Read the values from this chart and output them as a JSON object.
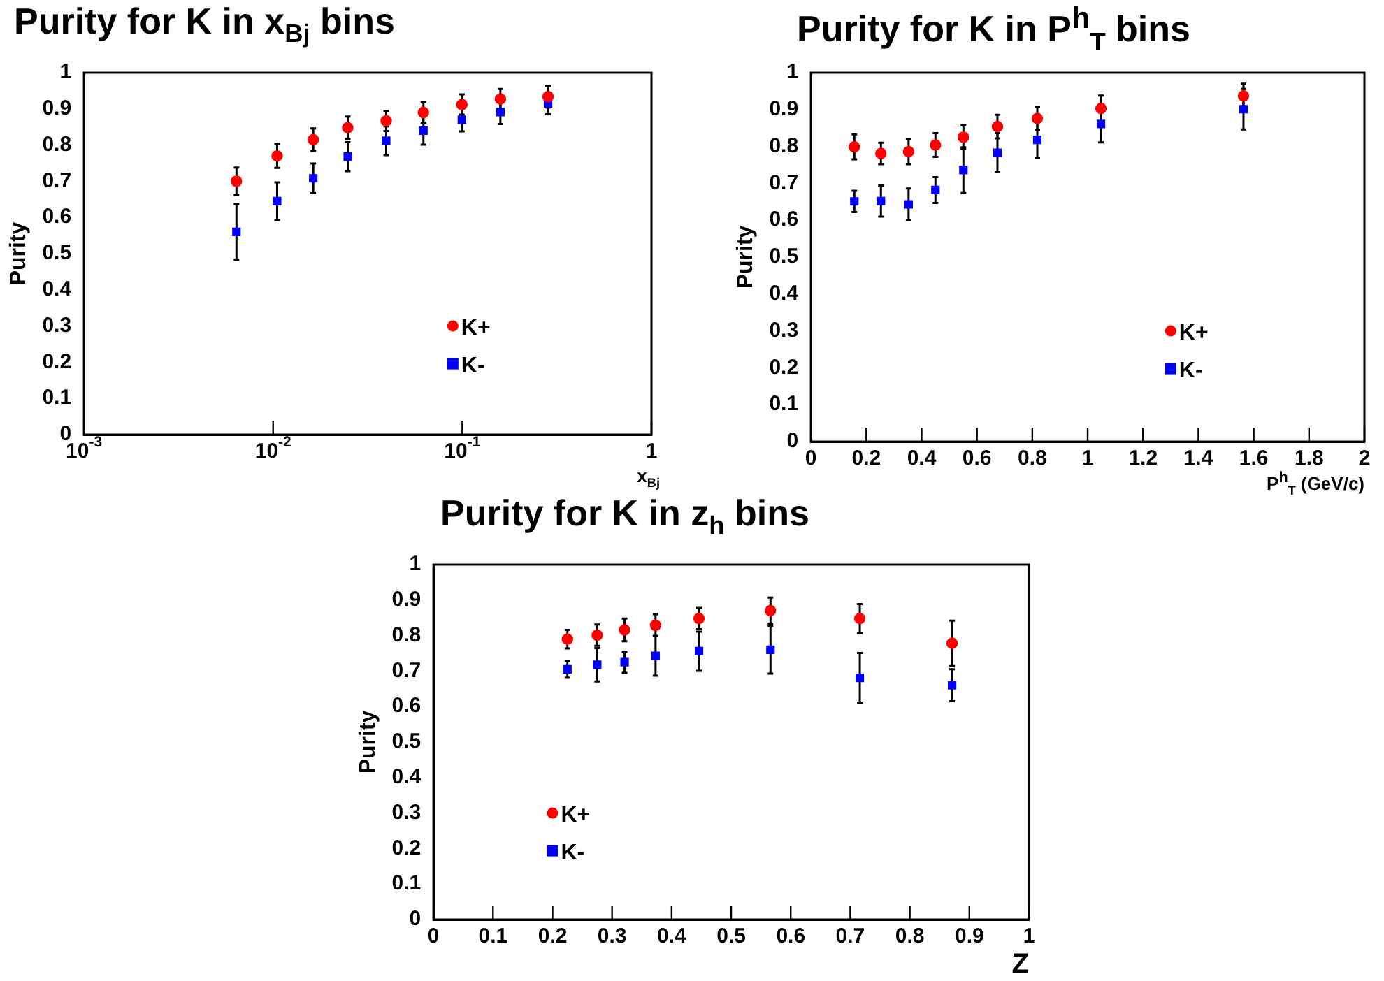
{
  "chart_data": [
    {
      "type": "scatter",
      "title": "Purity for K in x$_{Bj}$ bins",
      "xlabel": "x$_{Bj}$",
      "ylabel": "Purity",
      "log": "x",
      "xlim": [
        0.001,
        1
      ],
      "xticks": [
        {
          "value": 0.001,
          "label": "10$^{-3}$"
        },
        {
          "value": 0.01,
          "label": "10$^{-2}$"
        },
        {
          "value": 0.1,
          "label": "10$^{-1}$"
        },
        1
      ],
      "ylim": [
        0,
        1
      ],
      "yticks": [
        0,
        0.1,
        0.2,
        0.3,
        0.4,
        0.5,
        0.6,
        0.7,
        0.8,
        0.9,
        1
      ],
      "grid": false,
      "legend": "bottom right",
      "x": [
        0.0064,
        0.0105,
        0.0163,
        0.0248,
        0.0396,
        0.0623,
        0.0995,
        0.159,
        0.284
      ],
      "series": [
        {
          "name": "K+",
          "color": "#ff0000",
          "marker": "circle",
          "values": [
            0.7,
            0.77,
            0.815,
            0.848,
            0.867,
            0.89,
            0.912,
            0.927,
            0.934
          ],
          "errors": [
            0.038,
            0.033,
            0.031,
            0.031,
            0.028,
            0.028,
            0.028,
            0.028,
            0.03
          ]
        },
        {
          "name": "K-",
          "color": "#0000ff",
          "marker": "square",
          "values": [
            0.56,
            0.645,
            0.708,
            0.768,
            0.812,
            0.84,
            0.87,
            0.891,
            0.915
          ],
          "errors": [
            0.077,
            0.052,
            0.041,
            0.04,
            0.04,
            0.039,
            0.032,
            0.033,
            0.03
          ]
        }
      ]
    },
    {
      "type": "scatter",
      "title": "Purity for K in P$^{h}$$_{T}$ bins",
      "xlabel": "P$^{h}$$_{T}$ (GeV/c)",
      "ylabel": "Purity",
      "xlim": [
        0,
        2
      ],
      "xticks": [
        0,
        0.2,
        0.4,
        0.6,
        0.8,
        1,
        1.2,
        1.4,
        1.6,
        1.8,
        2
      ],
      "ylim": [
        0,
        1
      ],
      "yticks": [
        0,
        0.1,
        0.2,
        0.3,
        0.4,
        0.5,
        0.6,
        0.7,
        0.8,
        0.9,
        1
      ],
      "grid": false,
      "legend": "bottom right",
      "x": [
        0.157,
        0.253,
        0.353,
        0.45,
        0.551,
        0.674,
        0.818,
        1.048,
        1.563
      ],
      "series": [
        {
          "name": "K+",
          "color": "#ff0000",
          "marker": "circle",
          "values": [
            0.799,
            0.781,
            0.786,
            0.804,
            0.825,
            0.854,
            0.876,
            0.903,
            0.937
          ],
          "errors": [
            0.034,
            0.029,
            0.034,
            0.032,
            0.032,
            0.032,
            0.031,
            0.035,
            0.033
          ]
        },
        {
          "name": "K-",
          "color": "#0000ff",
          "marker": "square",
          "values": [
            0.651,
            0.652,
            0.643,
            0.682,
            0.736,
            0.783,
            0.818,
            0.861,
            0.901
          ],
          "errors": [
            0.029,
            0.042,
            0.043,
            0.035,
            0.062,
            0.053,
            0.048,
            0.05,
            0.055
          ]
        }
      ]
    },
    {
      "type": "scatter",
      "title": "Purity for K in z$_{h}$ bins",
      "xlabel": "Z",
      "ylabel": "Purity",
      "xlim": [
        0,
        1
      ],
      "xticks": [
        0,
        0.1,
        0.2,
        0.3,
        0.4,
        0.5,
        0.6,
        0.7,
        0.8,
        0.9,
        1
      ],
      "ylim": [
        0,
        1
      ],
      "yticks": [
        0,
        0.1,
        0.2,
        0.3,
        0.4,
        0.5,
        0.6,
        0.7,
        0.8,
        0.9,
        1
      ],
      "grid": false,
      "legend": "bottom left",
      "x": [
        0.225,
        0.275,
        0.321,
        0.373,
        0.446,
        0.566,
        0.716,
        0.871
      ],
      "series": [
        {
          "name": "K+",
          "color": "#ff0000",
          "marker": "circle",
          "values": [
            0.79,
            0.801,
            0.816,
            0.829,
            0.848,
            0.87,
            0.848,
            0.778
          ],
          "errors": [
            0.026,
            0.03,
            0.032,
            0.031,
            0.03,
            0.037,
            0.041,
            0.064
          ]
        },
        {
          "name": "K-",
          "color": "#0000ff",
          "marker": "square",
          "values": [
            0.705,
            0.718,
            0.725,
            0.743,
            0.756,
            0.76,
            0.681,
            0.66
          ],
          "errors": [
            0.024,
            0.047,
            0.03,
            0.056,
            0.055,
            0.067,
            0.07,
            0.045
          ]
        }
      ]
    }
  ]
}
